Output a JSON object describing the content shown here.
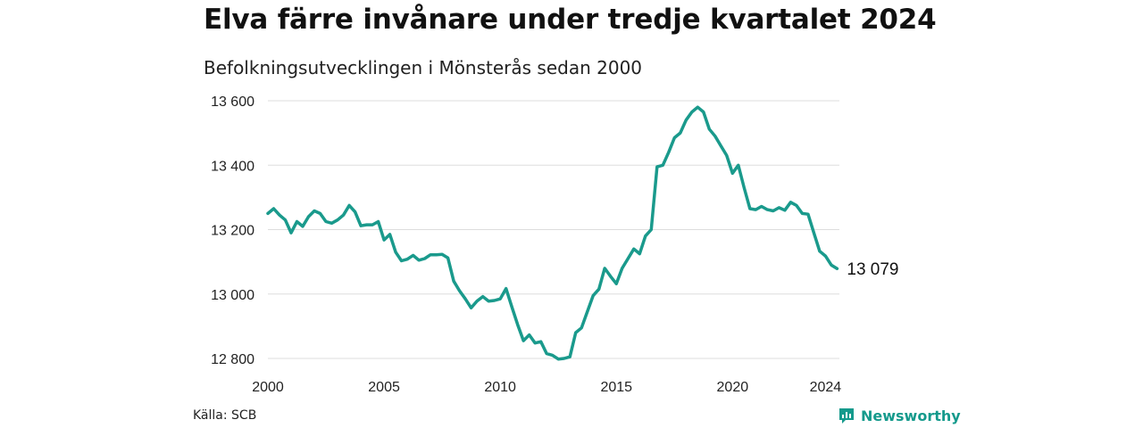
{
  "header": {
    "title": "Elva färre invånare under tredje kvartalet 2024",
    "subtitle": "Befolkningsutvecklingen i Mönsterås sedan 2000"
  },
  "footer": {
    "source": "Källa: SCB",
    "brand": "Newsworthy"
  },
  "colors": {
    "line": "#1a9a8c",
    "grid": "#dddddd",
    "brand": "#159a8c"
  },
  "chart_data": {
    "type": "line",
    "title": "Elva färre invånare under tredje kvartalet 2024",
    "subtitle": "Befolkningsutvecklingen i Mönsterås sedan 2000",
    "xlabel": "",
    "ylabel": "",
    "ylim": [
      12800,
      13600
    ],
    "xlim": [
      2000,
      2024.6
    ],
    "grid": true,
    "y_ticks": [
      12800,
      13000,
      13200,
      13400,
      13600
    ],
    "y_tick_labels": [
      "12 800",
      "13 000",
      "13 200",
      "13 400",
      "13 600"
    ],
    "x_ticks": [
      2000,
      2005,
      2010,
      2015,
      2020,
      2024
    ],
    "x_tick_labels": [
      "2000",
      "2005",
      "2010",
      "2015",
      "2020",
      "2024"
    ],
    "end_label": "13 079",
    "series": [
      {
        "frequency": "quarterly",
        "start": "2000 Q1",
        "values": [
          13250,
          13265,
          13245,
          13230,
          13190,
          13225,
          13210,
          13240,
          13258,
          13250,
          13225,
          13220,
          13230,
          13245,
          13275,
          13255,
          13212,
          13215,
          13215,
          13225,
          13168,
          13185,
          13130,
          13103,
          13108,
          13120,
          13105,
          13110,
          13122,
          13122,
          13123,
          13112,
          13040,
          13010,
          12985,
          12957,
          12978,
          12992,
          12978,
          12980,
          12985,
          13017,
          12960,
          12905,
          12855,
          12873,
          12848,
          12852,
          12815,
          12810,
          12798,
          12800,
          12805,
          12880,
          12895,
          12945,
          12995,
          13015,
          13080,
          13055,
          13032,
          13080,
          13110,
          13140,
          13125,
          13180,
          13200,
          13395,
          13400,
          13440,
          13485,
          13500,
          13540,
          13565,
          13580,
          13565,
          13512,
          13490,
          13460,
          13430,
          13375,
          13400,
          13330,
          13265,
          13262,
          13272,
          13262,
          13258,
          13268,
          13260,
          13285,
          13275,
          13250,
          13248,
          13190,
          13133,
          13118,
          13090,
          13079
        ]
      }
    ]
  }
}
